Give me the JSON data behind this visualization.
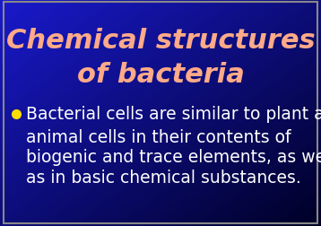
{
  "title_line1": "Chemical structures",
  "title_line2": "of bacteria",
  "title_color": "#FFAA88",
  "body_text_line1": "Bacterial cells are similar to plant and",
  "body_text_line2": "animal cells in their contents of",
  "body_text_line3": "biogenic and trace elements, as well",
  "body_text_line4": "as in basic chemical substances.",
  "body_text_color": "#FFFFFF",
  "bullet_color": "#FFDD00",
  "bg_color_top_left": "#1A1ACC",
  "bg_color_bottom_right": "#000033",
  "border_color": "#888888",
  "title_fontsize": 22,
  "body_fontsize": 13.5,
  "fig_width": 3.58,
  "fig_height": 2.53
}
